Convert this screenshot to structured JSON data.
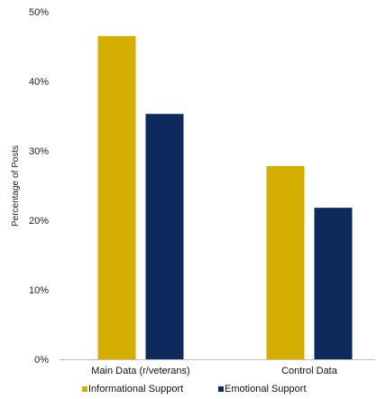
{
  "chart_data": {
    "type": "bar",
    "categories": [
      "Main Data (r/veterans)",
      "Control Data"
    ],
    "series": [
      {
        "name": "Informational Support",
        "values": [
          46.5,
          27.8
        ],
        "color": "#d4ae00"
      },
      {
        "name": "Emotional Support",
        "values": [
          35.3,
          21.8
        ],
        "color": "#0d2a5c"
      }
    ],
    "ylabel": "Percentage of Posts",
    "ylim": [
      0,
      50
    ],
    "yticks": [
      "0%",
      "10%",
      "20%",
      "30%",
      "40%",
      "50%"
    ],
    "grid": false,
    "legend_position": "bottom"
  }
}
